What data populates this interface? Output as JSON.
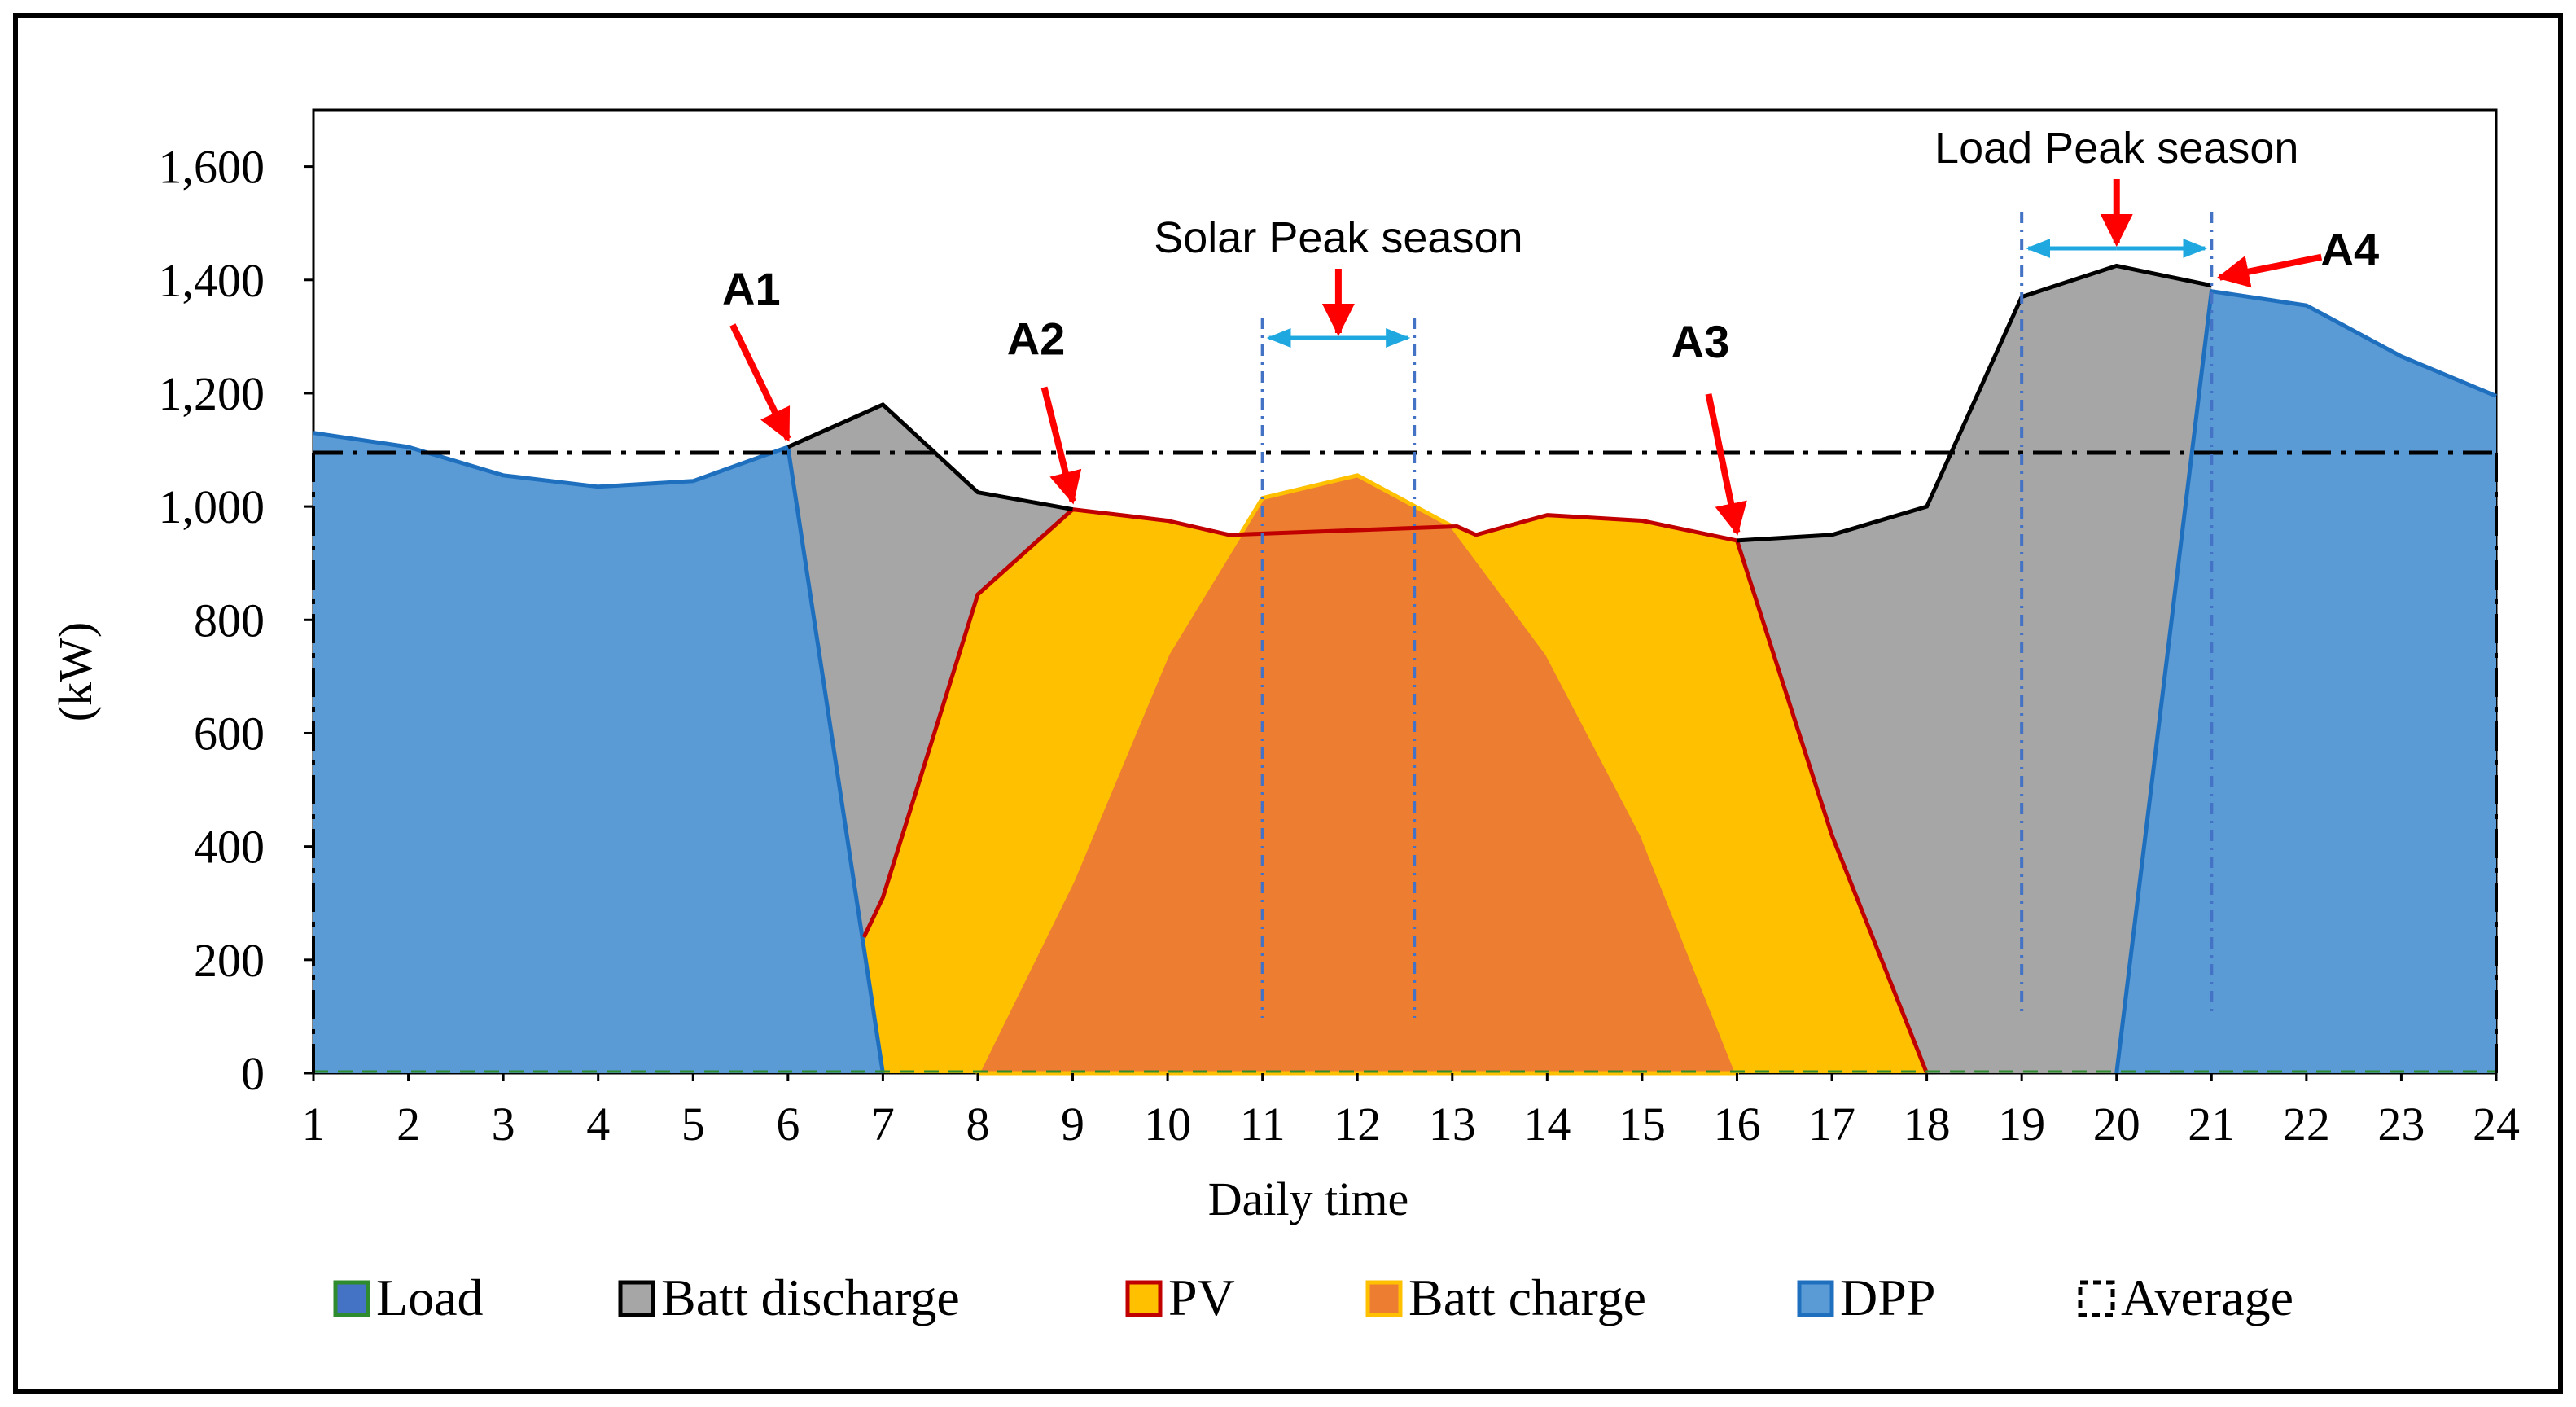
{
  "chart_data": {
    "type": "area",
    "title": "",
    "xlabel": "Daily time",
    "ylabel": "(kW)",
    "x": [
      1,
      2,
      3,
      4,
      5,
      6,
      7,
      8,
      9,
      10,
      11,
      12,
      13,
      14,
      15,
      16,
      17,
      18,
      19,
      20,
      21,
      22,
      23,
      24
    ],
    "ylim": [
      0,
      1700
    ],
    "yticks": [
      0,
      200,
      400,
      600,
      800,
      1000,
      1200,
      1400,
      1600
    ],
    "ytick_labels": [
      "0",
      "200",
      "400",
      "600",
      "800",
      "1,000",
      "1,200",
      "1,400",
      "1,600"
    ],
    "xtick_labels": [
      "1",
      "2",
      "3",
      "4",
      "5",
      "6",
      "7",
      "8",
      "9",
      "10",
      "11",
      "12",
      "13",
      "14",
      "15",
      "16",
      "17",
      "18",
      "19",
      "20",
      "21",
      "22",
      "23",
      "24"
    ],
    "average": 1095,
    "series": [
      {
        "name": "Load",
        "color": "#2e8b2e",
        "points": [
          [
            1,
            1130
          ],
          [
            2,
            1105
          ],
          [
            3,
            1055
          ],
          [
            4,
            1035
          ],
          [
            5,
            1045
          ],
          [
            6,
            1105
          ],
          [
            7,
            1180
          ],
          [
            8,
            1025
          ],
          [
            9,
            995
          ],
          [
            10,
            975
          ],
          [
            11,
            1015
          ],
          [
            12,
            1055
          ],
          [
            13,
            965
          ],
          [
            14,
            985
          ],
          [
            15,
            975
          ],
          [
            16,
            940
          ],
          [
            17,
            950
          ],
          [
            18,
            1000
          ],
          [
            19,
            1370
          ],
          [
            20,
            1425
          ],
          [
            21,
            1390
          ],
          [
            22,
            1355
          ],
          [
            23,
            1265
          ],
          [
            24,
            1195
          ]
        ]
      },
      {
        "name": "Batt discharge",
        "color": "#a6a6a6",
        "edge": "#000000",
        "points": [
          [
            6,
            1105
          ],
          [
            7,
            1180
          ],
          [
            8,
            1025
          ],
          [
            9,
            995
          ],
          [
            9,
            0
          ],
          [
            6,
            0
          ],
          [
            16,
            940
          ],
          [
            17,
            950
          ],
          [
            18,
            1000
          ],
          [
            19,
            1370
          ],
          [
            20,
            1425
          ],
          [
            21,
            1390
          ],
          [
            21,
            0
          ],
          [
            16,
            0
          ]
        ]
      },
      {
        "name": "PV",
        "color": "#ffc000",
        "edge": "#c00000",
        "points": [
          [
            6.8,
            240
          ],
          [
            7,
            310
          ],
          [
            8,
            845
          ],
          [
            9,
            995
          ],
          [
            10,
            975
          ],
          [
            10.65,
            950
          ],
          [
            13.05,
            965
          ],
          [
            13.25,
            950
          ],
          [
            14,
            985
          ],
          [
            15,
            975
          ],
          [
            16,
            940
          ],
          [
            17,
            420
          ],
          [
            18,
            0
          ],
          [
            6.85,
            0
          ]
        ]
      },
      {
        "name": "Batt charge",
        "color": "#ed7d31",
        "edge": "#ffc000",
        "points": [
          [
            8,
            0
          ],
          [
            9,
            340
          ],
          [
            10,
            740
          ],
          [
            11,
            1015
          ],
          [
            12,
            1055
          ],
          [
            13,
            965
          ],
          [
            14,
            740
          ],
          [
            15,
            420
          ],
          [
            16,
            0
          ]
        ]
      },
      {
        "name": "DPP",
        "color": "#5b9bd5",
        "edge": "#1f6fbf",
        "points": [
          [
            1,
            1130
          ],
          [
            2,
            1105
          ],
          [
            3,
            1055
          ],
          [
            4,
            1035
          ],
          [
            5,
            1045
          ],
          [
            6,
            1105
          ],
          [
            7,
            0
          ],
          [
            20,
            0
          ],
          [
            21,
            1380
          ],
          [
            22,
            1355
          ],
          [
            23,
            1265
          ],
          [
            24,
            1195
          ]
        ]
      },
      {
        "name": "Average",
        "color": "#000000",
        "value": 1095
      }
    ],
    "annotations": [
      {
        "label": "A1",
        "x": 6,
        "y": 1105
      },
      {
        "label": "A2",
        "x": 9,
        "y": 995
      },
      {
        "label": "A3",
        "x": 16,
        "y": 940
      },
      {
        "label": "A4",
        "x": 21,
        "y": 1390
      }
    ],
    "seasons": [
      {
        "label": "Solar Peak season",
        "x_start": 11,
        "x_end": 12.6
      },
      {
        "label": "Load Peak season",
        "x_start": 19,
        "x_end": 21
      }
    ],
    "legend_position": "bottom",
    "legend": [
      "Load",
      "Batt discharge",
      "PV",
      "Batt charge",
      "DPP",
      "Average"
    ]
  },
  "colors": {
    "dpp": "#5b9bd5",
    "dpp_edge": "#1f6fbf",
    "batt_discharge": "#a6a6a6",
    "pv": "#ffc000",
    "pv_edge": "#c00000",
    "batt_charge": "#ed7d31",
    "load": "#2e8b2e",
    "arrow_red": "#ff0000",
    "season_blue": "#1fa8e0",
    "season_line": "#4472c4"
  }
}
